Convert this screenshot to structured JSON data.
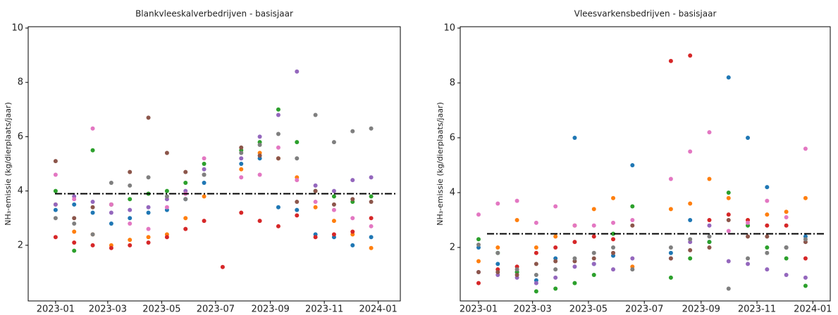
{
  "chart_data": [
    {
      "type": "scatter",
      "title": "Blankvleeskalverbedrijven - basisjaar",
      "y_label": "NH₃-emissie (kg/dierplaats/jaar)",
      "x": [
        0,
        21,
        42,
        63,
        84,
        105,
        126,
        147,
        168,
        189,
        210,
        231,
        252,
        273,
        294,
        315,
        336,
        357
      ],
      "xlim": [
        -31,
        390
      ],
      "ylim": [
        -0.05,
        10.05
      ],
      "xticks": [
        {
          "value": 0,
          "label": "2023-01"
        },
        {
          "value": 59,
          "label": "2023-03"
        },
        {
          "value": 120,
          "label": "2023-05"
        },
        {
          "value": 181,
          "label": "2023-07"
        },
        {
          "value": 243,
          "label": "2023-09"
        },
        {
          "value": 304,
          "label": "2023-11"
        },
        {
          "value": 365,
          "label": "2024-01"
        }
      ],
      "yticks": [
        2,
        4,
        6,
        8,
        10
      ],
      "reference_line": 3.9,
      "series": [
        {
          "color": "#1f77b4",
          "values": [
            3.3,
            3.5,
            3.2,
            2.8,
            3.0,
            3.2,
            3.3,
            3.7,
            4.3,
            null,
            5.0,
            5.2,
            3.4,
            3.3,
            2.4,
            2.3,
            2.0,
            2.3
          ]
        },
        {
          "color": "#ff7f0e",
          "values": [
            3.5,
            2.5,
            2.4,
            2.0,
            2.2,
            2.3,
            2.4,
            3.0,
            3.8,
            null,
            4.8,
            5.4,
            5.2,
            4.5,
            3.4,
            2.9,
            2.4,
            1.9
          ]
        },
        {
          "color": "#2ca02c",
          "values": [
            4.0,
            1.8,
            5.5,
            3.5,
            3.7,
            3.9,
            4.0,
            4.3,
            5.0,
            null,
            5.5,
            5.8,
            7.0,
            5.8,
            4.0,
            3.8,
            3.6,
            3.8
          ]
        },
        {
          "color": "#d62728",
          "values": [
            2.3,
            2.1,
            2.0,
            1.9,
            2.0,
            2.1,
            2.3,
            2.6,
            2.9,
            1.2,
            3.2,
            2.9,
            2.7,
            3.1,
            2.3,
            2.4,
            2.5,
            3.0
          ]
        },
        {
          "color": "#9467bd",
          "values": [
            3.5,
            3.8,
            3.6,
            3.2,
            3.3,
            3.4,
            3.7,
            4.0,
            4.8,
            null,
            5.2,
            6.0,
            6.8,
            8.4,
            4.2,
            4.0,
            4.4,
            4.5
          ]
        },
        {
          "color": "#8c564b",
          "values": [
            5.1,
            3.0,
            3.4,
            3.5,
            4.7,
            6.7,
            5.4,
            4.7,
            4.6,
            null,
            5.6,
            5.3,
            5.2,
            3.6,
            4.0,
            3.5,
            3.7,
            3.6
          ]
        },
        {
          "color": "#e377c2",
          "values": [
            4.6,
            3.7,
            6.3,
            3.5,
            2.8,
            2.6,
            3.4,
            3.9,
            5.2,
            null,
            4.5,
            4.6,
            5.6,
            4.4,
            3.6,
            3.3,
            3.0,
            2.7
          ]
        },
        {
          "color": "#7f7f7f",
          "values": [
            3.0,
            2.8,
            2.4,
            4.3,
            4.2,
            4.5,
            3.8,
            3.7,
            4.6,
            null,
            5.4,
            5.7,
            6.1,
            5.2,
            6.8,
            5.8,
            6.2,
            6.3
          ]
        }
      ]
    },
    {
      "type": "scatter",
      "title": "Vleesvarkensbedrijven - basisjaar",
      "y_label": "NH₃-emissie (kg/dierplaats/jaar)",
      "x": [
        0,
        21,
        42,
        63,
        84,
        105,
        126,
        147,
        168,
        189,
        210,
        231,
        252,
        273,
        294,
        315,
        336,
        357
      ],
      "xlim": [
        -20,
        384
      ],
      "ylim": [
        0.05,
        10.05
      ],
      "xticks": [
        {
          "value": 0,
          "label": "2023-01"
        },
        {
          "value": 59,
          "label": "2023-03"
        },
        {
          "value": 120,
          "label": "2023-05"
        },
        {
          "value": 181,
          "label": "2023-07"
        },
        {
          "value": 243,
          "label": "2023-09"
        },
        {
          "value": 304,
          "label": "2023-11"
        },
        {
          "value": 365,
          "label": "2024-01"
        }
      ],
      "yticks": [
        2,
        4,
        6,
        8,
        10
      ],
      "reference_line": 2.5,
      "series": [
        {
          "color": "#1f77b4",
          "values": [
            2.0,
            1.4,
            1.1,
            0.8,
            1.6,
            6.0,
            1.4,
            1.7,
            5.0,
            null,
            1.8,
            3.0,
            2.2,
            8.2,
            6.0,
            4.2,
            2.0,
            2.4
          ]
        },
        {
          "color": "#ff7f0e",
          "values": [
            1.5,
            2.0,
            3.0,
            2.0,
            2.4,
            2.8,
            3.4,
            3.8,
            1.3,
            null,
            3.4,
            3.6,
            4.5,
            3.8,
            3.0,
            3.2,
            3.3,
            3.8
          ]
        },
        {
          "color": "#2ca02c",
          "values": [
            2.3,
            1.8,
            1.1,
            0.4,
            0.5,
            0.7,
            1.0,
            2.5,
            3.5,
            null,
            0.9,
            1.6,
            2.2,
            4.0,
            2.8,
            2.0,
            1.6,
            0.6
          ]
        },
        {
          "color": "#d62728",
          "values": [
            0.7,
            1.2,
            1.3,
            1.8,
            2.0,
            2.2,
            2.4,
            2.3,
            null,
            null,
            8.8,
            9.0,
            3.0,
            3.2,
            3.0,
            2.8,
            2.8,
            1.6
          ]
        },
        {
          "color": "#9467bd",
          "values": [
            1.1,
            1.0,
            0.9,
            0.7,
            0.9,
            1.3,
            1.4,
            1.2,
            1.6,
            null,
            1.6,
            2.2,
            2.8,
            1.5,
            1.4,
            1.2,
            1.0,
            0.9
          ]
        },
        {
          "color": "#8c564b",
          "values": [
            1.1,
            1.1,
            1.0,
            1.4,
            1.5,
            1.5,
            1.6,
            1.8,
            2.8,
            null,
            1.6,
            1.9,
            2.0,
            3.0,
            2.4,
            2.4,
            2.0,
            2.2
          ]
        },
        {
          "color": "#e377c2",
          "values": [
            3.2,
            3.6,
            3.7,
            2.9,
            3.5,
            2.8,
            2.8,
            2.9,
            3.0,
            null,
            4.5,
            5.5,
            6.2,
            2.6,
            2.9,
            3.7,
            3.1,
            5.6
          ]
        },
        {
          "color": "#7f7f7f",
          "values": [
            2.1,
            1.8,
            1.2,
            1.0,
            1.2,
            1.6,
            1.8,
            2.0,
            1.2,
            null,
            2.0,
            2.3,
            2.4,
            0.5,
            1.6,
            1.8,
            2.0,
            2.3
          ]
        }
      ]
    }
  ]
}
